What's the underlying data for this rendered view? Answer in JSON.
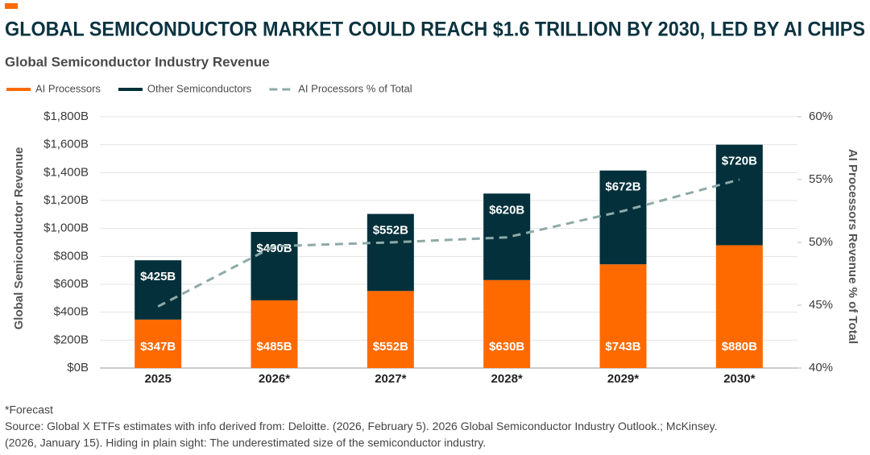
{
  "chart_data": {
    "type": "bar",
    "title": "GLOBAL SEMICONDUCTOR MARKET COULD REACH $1.6 TRILLION BY 2030, LED BY AI CHIPS",
    "subtitle": "Global Semiconductor Industry Revenue",
    "y_label": "Global Semiconductor Revenue",
    "y2_label": "AI Processors Revenue % of Total",
    "categories": [
      "2025",
      "2026*",
      "2027*",
      "2028*",
      "2029*",
      "2030*"
    ],
    "series": [
      {
        "name": "AI Processors",
        "type": "bar",
        "color": "#ff6a00",
        "values": [
          347,
          485,
          552,
          630,
          743,
          880
        ],
        "value_labels": [
          "$347B",
          "$485B",
          "$552B",
          "$630B",
          "$743B",
          "$880B"
        ]
      },
      {
        "name": "Other Semiconductors",
        "type": "bar",
        "color": "#03303a",
        "values": [
          425,
          490,
          552,
          620,
          672,
          720
        ],
        "value_labels": [
          "$425B",
          "$490B",
          "$552B",
          "$620B",
          "$672B",
          "$720B"
        ]
      },
      {
        "name": "AI Processors % of Total",
        "type": "line",
        "axis": "y2",
        "dashed": true,
        "color": "#8eaaa8",
        "values": [
          44.9,
          49.7,
          50.0,
          50.4,
          52.5,
          55.0
        ]
      }
    ],
    "stacked": true,
    "ylim": [
      0,
      1800
    ],
    "yticks": [
      {
        "value": 0,
        "label": "$0B"
      },
      {
        "value": 200,
        "label": "$200B"
      },
      {
        "value": 400,
        "label": "$400B"
      },
      {
        "value": 600,
        "label": "$600B"
      },
      {
        "value": 800,
        "label": "$800B"
      },
      {
        "value": 1000,
        "label": "$1,000B"
      },
      {
        "value": 1200,
        "label": "$1,200B"
      },
      {
        "value": 1400,
        "label": "$1,400B"
      },
      {
        "value": 1600,
        "label": "$1,600B"
      },
      {
        "value": 1800,
        "label": "$1,800B"
      }
    ],
    "y2lim": [
      40,
      60
    ],
    "y2ticks": [
      {
        "value": 40,
        "label": "40%"
      },
      {
        "value": 45,
        "label": "45%"
      },
      {
        "value": 50,
        "label": "50%"
      },
      {
        "value": 55,
        "label": "55%"
      },
      {
        "value": 60,
        "label": "60%"
      }
    ],
    "grid": true,
    "legend": "top-left",
    "notes": [
      "*Forecast",
      "Source: Global X ETFs estimates with info derived from: Deloitte. (2026, February 5). 2026 Global Semiconductor Industry Outlook.; McKinsey.",
      "(2026, January 15). Hiding in plain sight: The underestimated size of the semiconductor industry."
    ]
  }
}
